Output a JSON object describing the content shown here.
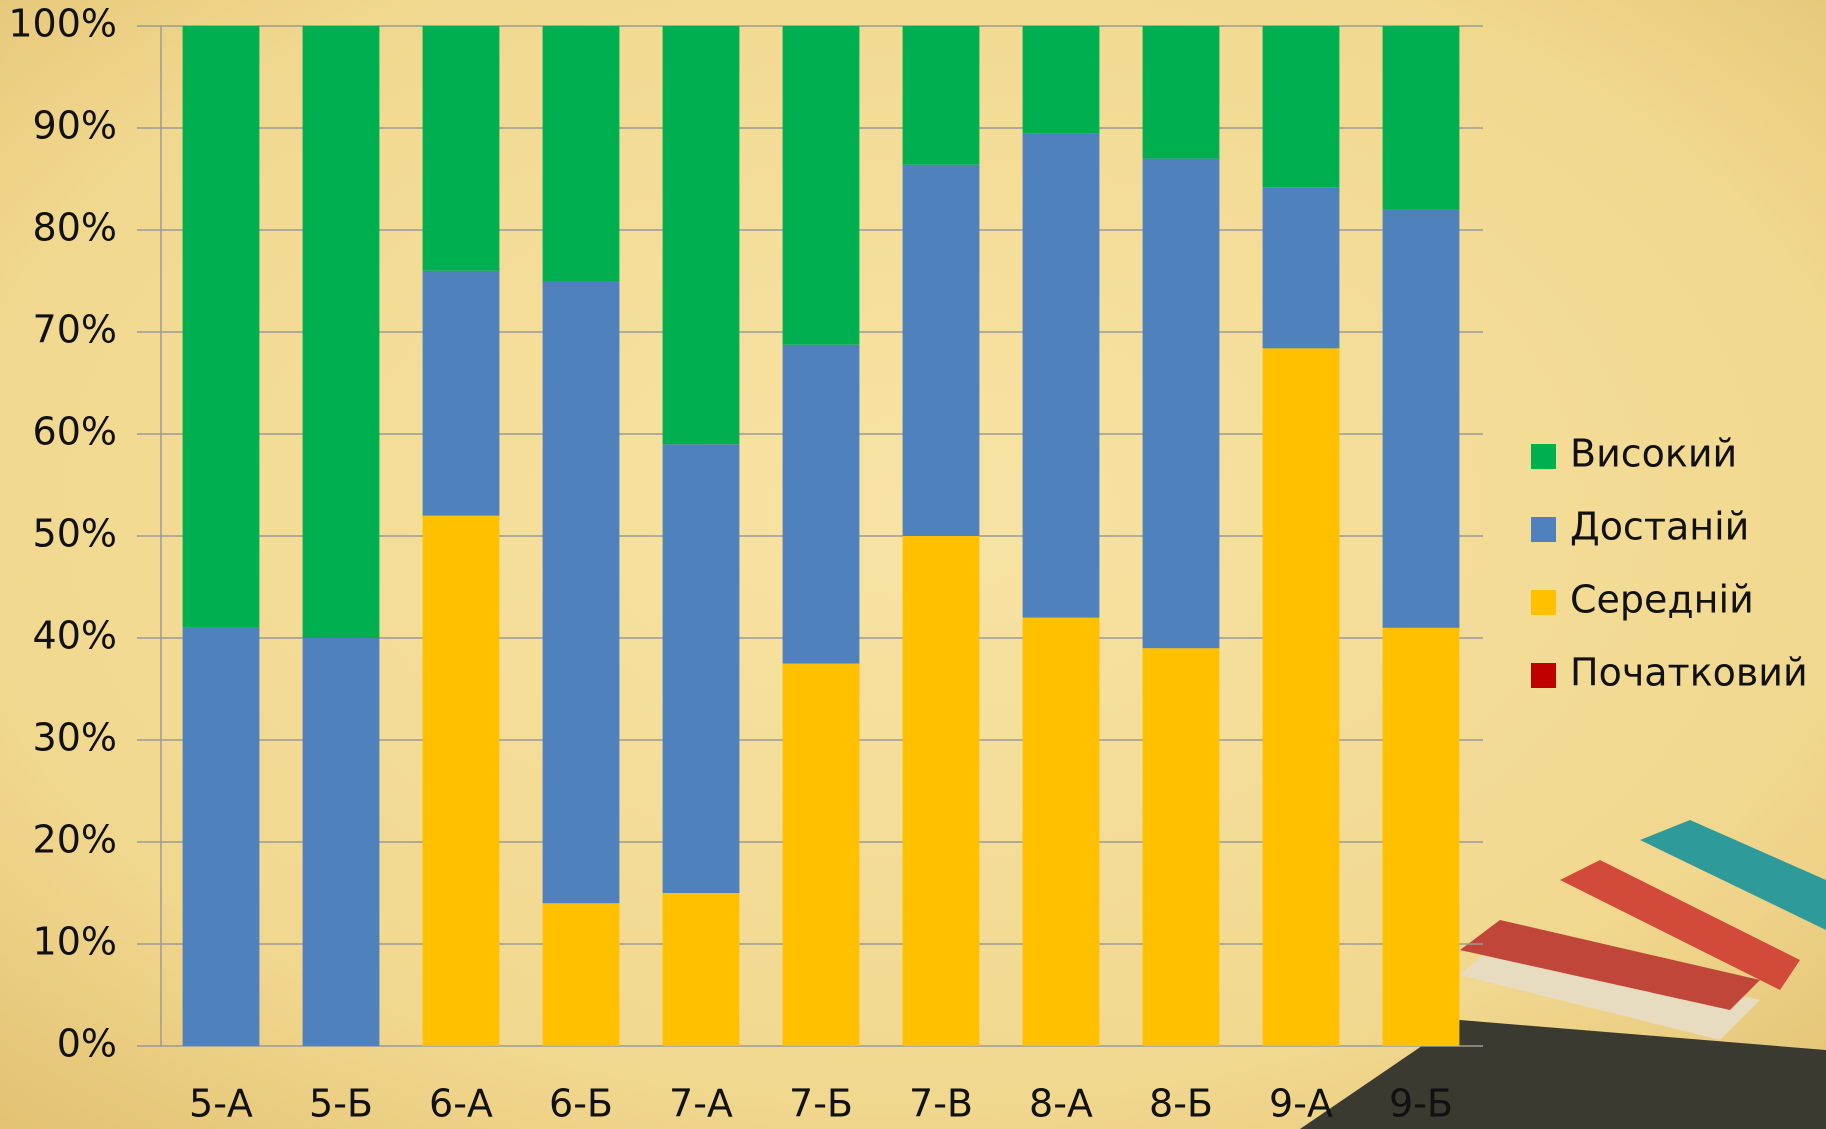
{
  "chart_data": {
    "type": "stacked_bar",
    "categories": [
      "5-А",
      "5-Б",
      "6-А",
      "6-Б",
      "7-А",
      "7-Б",
      "7-В",
      "8-А",
      "8-Б",
      "9-А",
      "9-Б"
    ],
    "series": [
      {
        "name": "Початковий",
        "color": "#c00000",
        "values": [
          0,
          0,
          0,
          0,
          0,
          0,
          0,
          0,
          0,
          0,
          0
        ]
      },
      {
        "name": "Середній",
        "color": "#ffc000",
        "values": [
          0,
          0,
          52,
          14,
          15,
          37.5,
          50,
          42,
          39,
          68.4,
          41
        ]
      },
      {
        "name": "Достаній",
        "color": "#4f81bd",
        "values": [
          41,
          40,
          24,
          61,
          44,
          31.25,
          36.4,
          47.5,
          48,
          15.8,
          41
        ]
      },
      {
        "name": "Високий",
        "color": "#00b050",
        "values": [
          59,
          60,
          24,
          25,
          41,
          31.25,
          13.6,
          10.5,
          13,
          15.8,
          18
        ]
      }
    ],
    "ylim": [
      0,
      100
    ],
    "yticks": [
      {
        "value": 0,
        "label": "0%"
      },
      {
        "value": 10,
        "label": "10%"
      },
      {
        "value": 20,
        "label": "20%"
      },
      {
        "value": 30,
        "label": "30%"
      },
      {
        "value": 40,
        "label": "40%"
      },
      {
        "value": 50,
        "label": "50%"
      },
      {
        "value": 60,
        "label": "60%"
      },
      {
        "value": 70,
        "label": "70%"
      },
      {
        "value": 80,
        "label": "80%"
      },
      {
        "value": 90,
        "label": "90%"
      },
      {
        "value": 100,
        "label": "100%"
      }
    ],
    "grid": true,
    "legend": "right"
  }
}
